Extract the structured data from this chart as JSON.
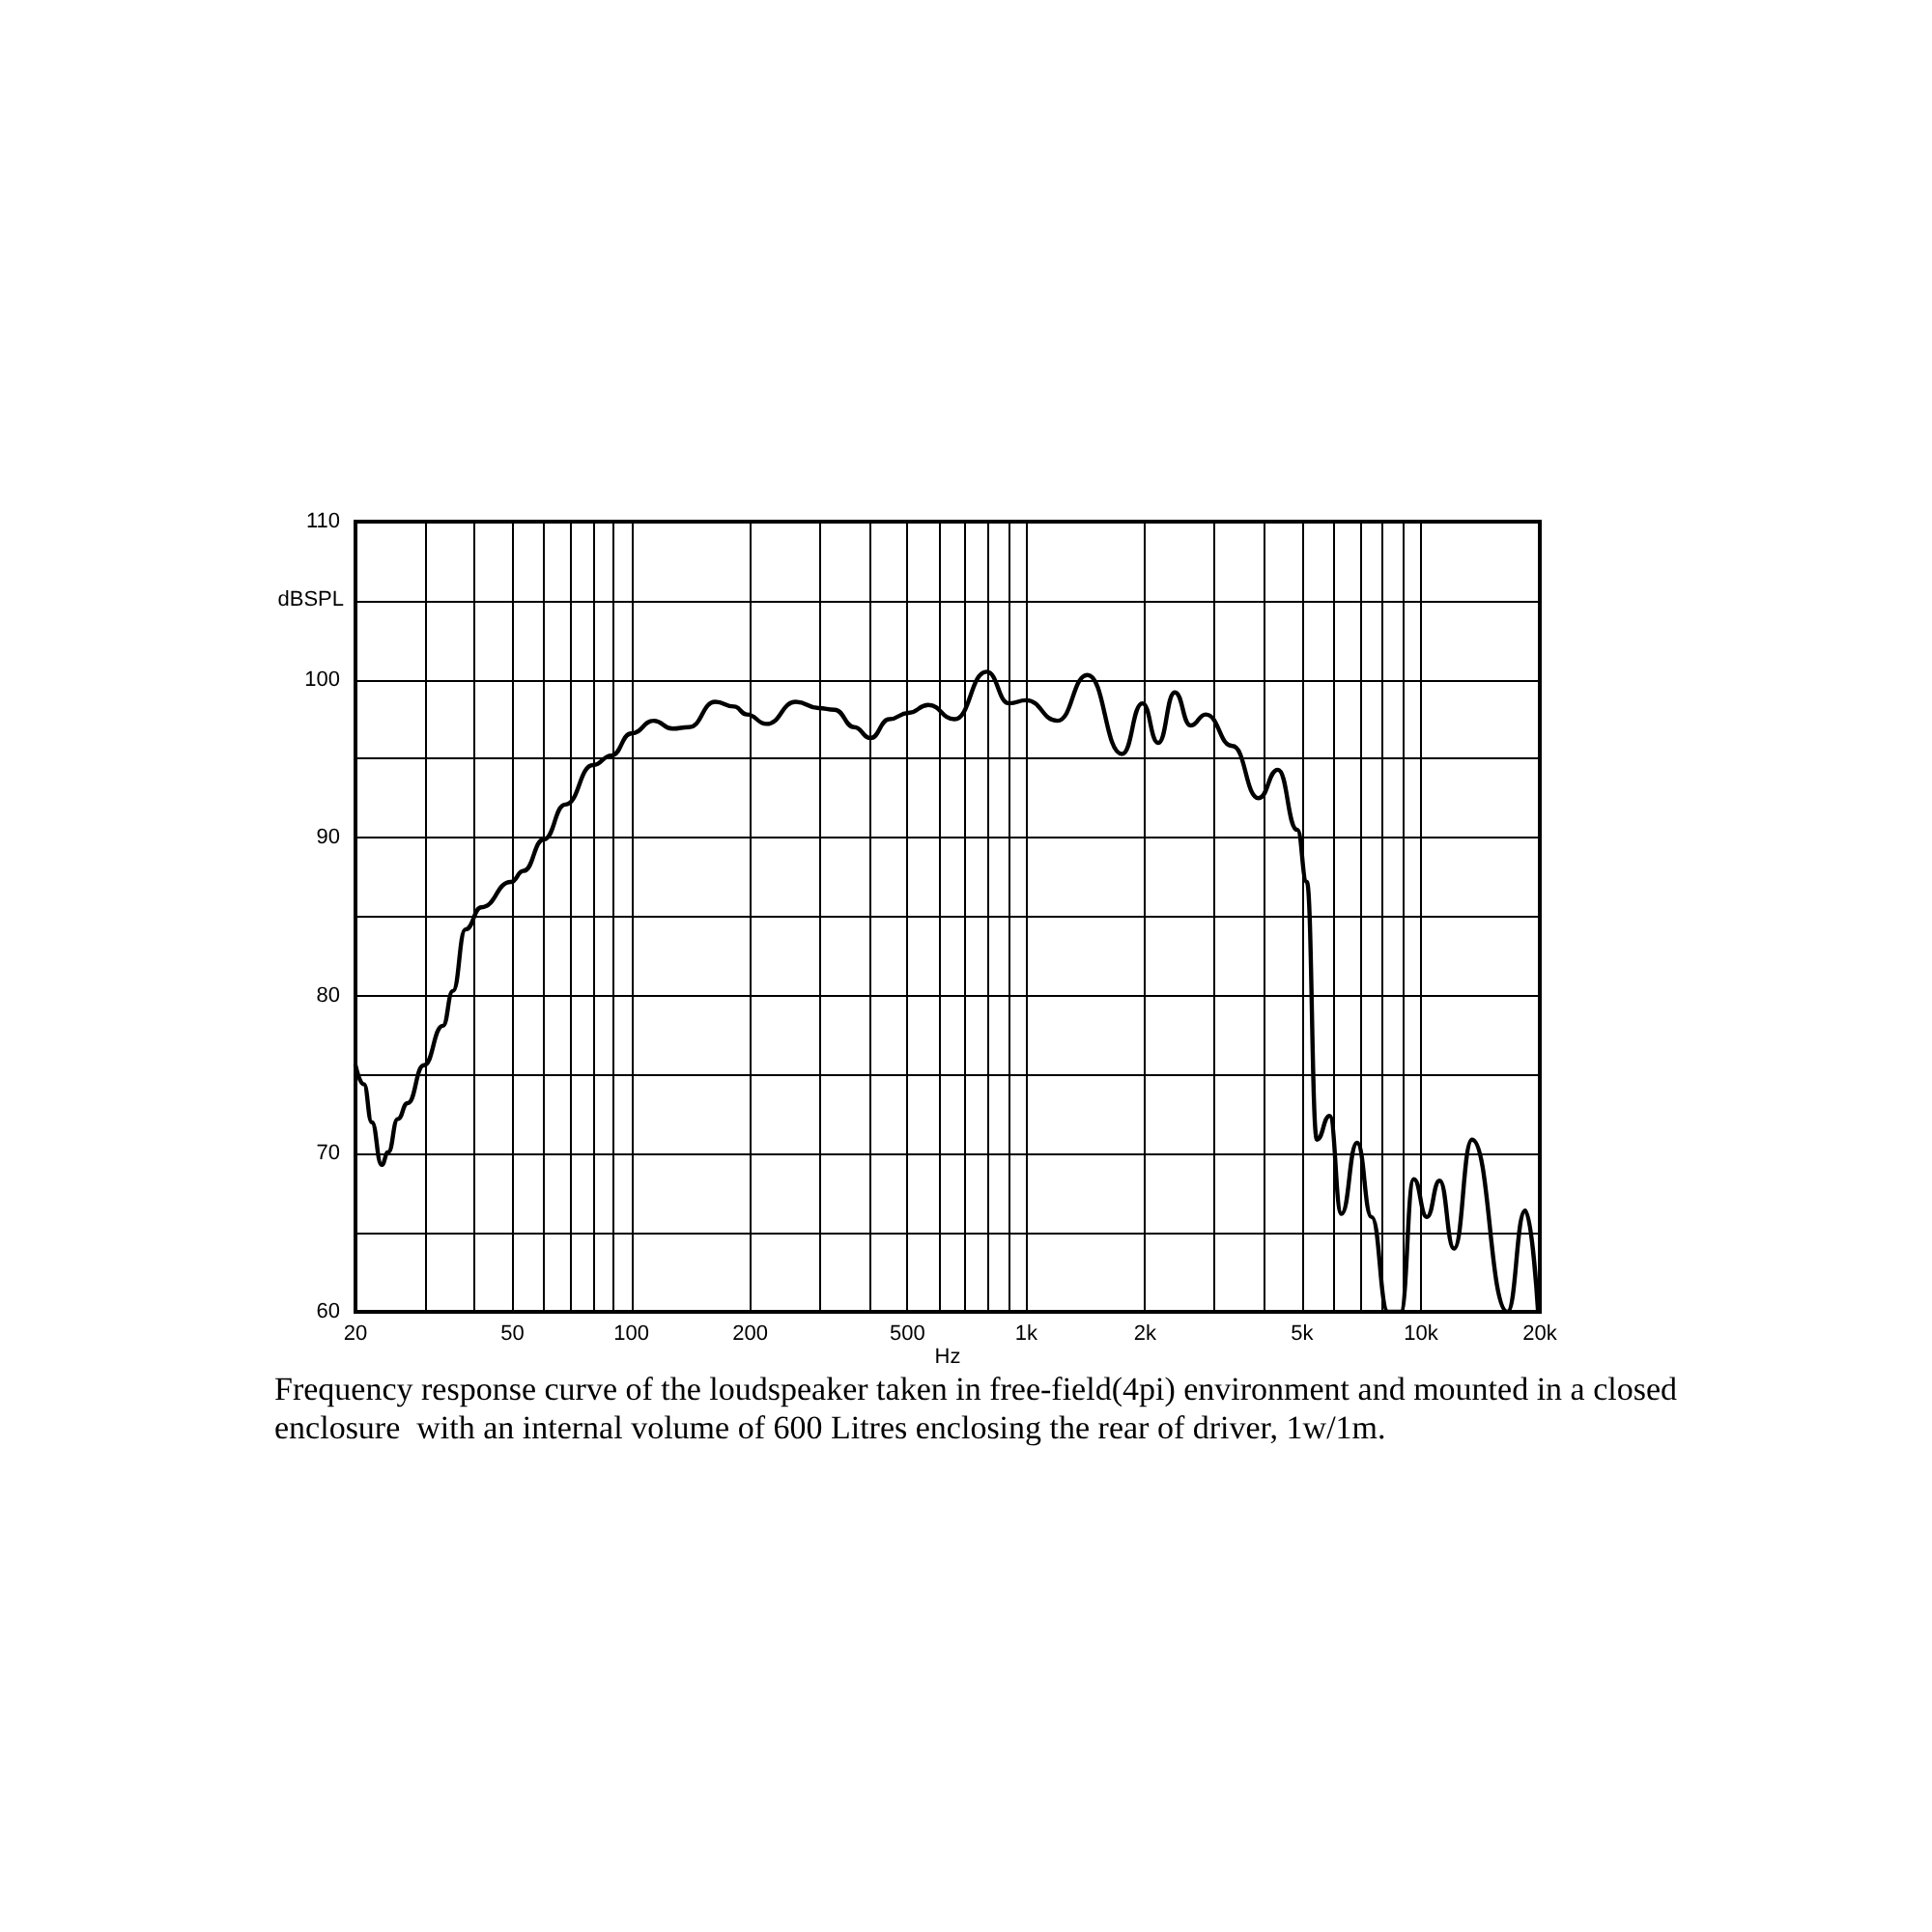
{
  "chart_data": {
    "type": "line",
    "xlabel": "Hz",
    "ylabel": "dBSPL",
    "log": "x",
    "grid": true,
    "marker": "none",
    "line_style": "solid",
    "annotations": [
      "Frequency response curve of the loudspeaker taken in free-field(4pi) environment and mounted in a closed enclosure  with an internal volume of 600 Litres enclosing the rear of driver, 1w/1m."
    ],
    "xlim": [
      20,
      20000
    ],
    "ylim": [
      60,
      110
    ],
    "xticks": [
      20,
      {
        "value": 30,
        "label": null
      },
      {
        "value": 40,
        "label": null
      },
      50,
      {
        "value": 60,
        "label": null
      },
      {
        "value": 70,
        "label": null
      },
      {
        "value": 80,
        "label": null
      },
      {
        "value": 90,
        "label": null
      },
      100,
      200,
      {
        "value": 300,
        "label": null
      },
      {
        "value": 400,
        "label": null
      },
      500,
      {
        "value": 600,
        "label": null
      },
      {
        "value": 700,
        "label": null
      },
      {
        "value": 800,
        "label": null
      },
      {
        "value": 900,
        "label": null
      },
      {
        "value": 1000,
        "label": "1k"
      },
      {
        "value": 2000,
        "label": "2k"
      },
      {
        "value": 3000,
        "label": null
      },
      {
        "value": 4000,
        "label": null
      },
      {
        "value": 5000,
        "label": "5k"
      },
      {
        "value": 6000,
        "label": null
      },
      {
        "value": 7000,
        "label": null
      },
      {
        "value": 8000,
        "label": null
      },
      {
        "value": 9000,
        "label": null
      },
      {
        "value": 10000,
        "label": "10k"
      },
      {
        "value": 20000,
        "label": "20k"
      }
    ],
    "yticks": [
      60,
      {
        "value": 65,
        "label": null
      },
      70,
      {
        "value": 75,
        "label": null
      },
      80,
      {
        "value": 85,
        "label": null
      },
      90,
      {
        "value": 95,
        "label": null
      },
      100,
      {
        "value": 105,
        "label": null
      },
      110
    ],
    "x": [
      20,
      21,
      22,
      23.3,
      24.2,
      25.6,
      27.1,
      29.8,
      33.3,
      35.3,
      38,
      41.7,
      49.5,
      53.3,
      60,
      68,
      80,
      89,
      100,
      114,
      127,
      140,
      163,
      182,
      196,
      220,
      261,
      298,
      327,
      367,
      403,
      450,
      503,
      565,
      658,
      794,
      906,
      1000,
      1200,
      1430,
      1750,
      1970,
      2160,
      2380,
      2610,
      2850,
      3330,
      3880,
      4340,
      4860,
      5140,
      5450,
      5870,
      6290,
      6890,
      7500,
      8250,
      8890,
      9590,
      10350,
      11150,
      12130,
      13470,
      16560,
      18370,
      19800
    ],
    "series": [
      {
        "color": "#000000",
        "values": [
          75.6,
          74.4,
          72.0,
          69.3,
          70.1,
          72.2,
          73.2,
          75.6,
          78.1,
          80.3,
          84.2,
          85.6,
          87.2,
          87.9,
          89.9,
          92.1,
          94.6,
          95.2,
          96.6,
          97.4,
          96.9,
          97.0,
          98.6,
          98.3,
          97.8,
          97.2,
          98.6,
          98.2,
          98.1,
          97.0,
          96.3,
          97.5,
          97.9,
          98.4,
          97.5,
          100.5,
          98.5,
          98.7,
          97.4,
          100.3,
          95.3,
          98.5,
          96.0,
          99.2,
          97.1,
          97.8,
          95.8,
          92.5,
          94.3,
          90.5,
          87.2,
          70.9,
          72.4,
          66.2,
          70.7,
          66.0,
          60.0,
          60.0,
          68.4,
          66.0,
          68.3,
          64.0,
          70.9,
          60.0,
          66.4,
          60.0
        ]
      }
    ]
  }
}
